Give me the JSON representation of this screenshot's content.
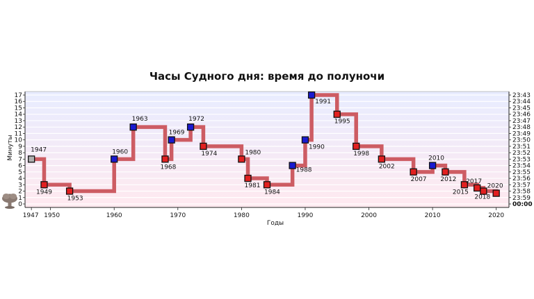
{
  "chart_data": {
    "type": "line",
    "title": "Часы Судного дня: время до полуночи",
    "xlabel": "Годы",
    "ylabel": "Минуты",
    "xlim": [
      1946,
      2022
    ],
    "ylim": [
      0,
      17
    ],
    "x_ticks": [
      "1947",
      "1950",
      "1960",
      "1970",
      "1980",
      "1990",
      "2000",
      "2010",
      "2020"
    ],
    "y_ticks": [
      "0",
      "1",
      "2",
      "3",
      "4",
      "5",
      "6",
      "7",
      "8",
      "9",
      "10",
      "11",
      "12",
      "13",
      "14",
      "15",
      "16",
      "17"
    ],
    "right_ticks": [
      "00:00",
      "23:59",
      "23:58",
      "23:57",
      "23:56",
      "23:55",
      "23:54",
      "23:53",
      "23:52",
      "23:51",
      "23:50",
      "23:49",
      "23:48",
      "23:47",
      "23:46",
      "23:45",
      "23:44",
      "23:43"
    ],
    "step": "post",
    "line_color": "#cd5c63",
    "marker_colors": {
      "start": "#b0b0b0",
      "closer": "#e22020",
      "farther": "#1a1ad0"
    },
    "midnight_color": "#e02020",
    "series": [
      {
        "points": [
          {
            "year": 1947,
            "minutes": 7,
            "label": "1947",
            "kind": "start"
          },
          {
            "year": 1949,
            "minutes": 3,
            "label": "1949",
            "kind": "closer"
          },
          {
            "year": 1953,
            "minutes": 2,
            "label": "1953",
            "kind": "closer"
          },
          {
            "year": 1960,
            "minutes": 7,
            "label": "1960",
            "kind": "farther"
          },
          {
            "year": 1963,
            "minutes": 12,
            "label": "1963",
            "kind": "farther"
          },
          {
            "year": 1968,
            "minutes": 7,
            "label": "1968",
            "kind": "closer"
          },
          {
            "year": 1969,
            "minutes": 10,
            "label": "1969",
            "kind": "farther"
          },
          {
            "year": 1972,
            "minutes": 12,
            "label": "1972",
            "kind": "farther"
          },
          {
            "year": 1974,
            "minutes": 9,
            "label": "1974",
            "kind": "closer"
          },
          {
            "year": 1980,
            "minutes": 7,
            "label": "1980",
            "kind": "closer"
          },
          {
            "year": 1981,
            "minutes": 4,
            "label": "1981",
            "kind": "closer"
          },
          {
            "year": 1984,
            "minutes": 3,
            "label": "1984",
            "kind": "closer"
          },
          {
            "year": 1988,
            "minutes": 6,
            "label": "1988",
            "kind": "farther"
          },
          {
            "year": 1990,
            "minutes": 10,
            "label": "1990",
            "kind": "farther"
          },
          {
            "year": 1991,
            "minutes": 17,
            "label": "1991",
            "kind": "farther"
          },
          {
            "year": 1995,
            "minutes": 14,
            "label": "1995",
            "kind": "closer"
          },
          {
            "year": 1998,
            "minutes": 9,
            "label": "1998",
            "kind": "closer"
          },
          {
            "year": 2002,
            "minutes": 7,
            "label": "2002",
            "kind": "closer"
          },
          {
            "year": 2007,
            "minutes": 5,
            "label": "2007",
            "kind": "closer"
          },
          {
            "year": 2010,
            "minutes": 6,
            "label": "2010",
            "kind": "farther"
          },
          {
            "year": 2012,
            "minutes": 5,
            "label": "2012",
            "kind": "closer"
          },
          {
            "year": 2015,
            "minutes": 3,
            "label": "2015",
            "kind": "closer"
          },
          {
            "year": 2017,
            "minutes": 2.5,
            "label": "2017",
            "kind": "closer"
          },
          {
            "year": 2018,
            "minutes": 2,
            "label": "2018",
            "kind": "closer"
          },
          {
            "year": 2020,
            "minutes": 1.67,
            "label": "2020",
            "kind": "closer"
          }
        ]
      }
    ],
    "grid": true,
    "legend": "none",
    "icon": "mushroom-cloud-icon"
  }
}
